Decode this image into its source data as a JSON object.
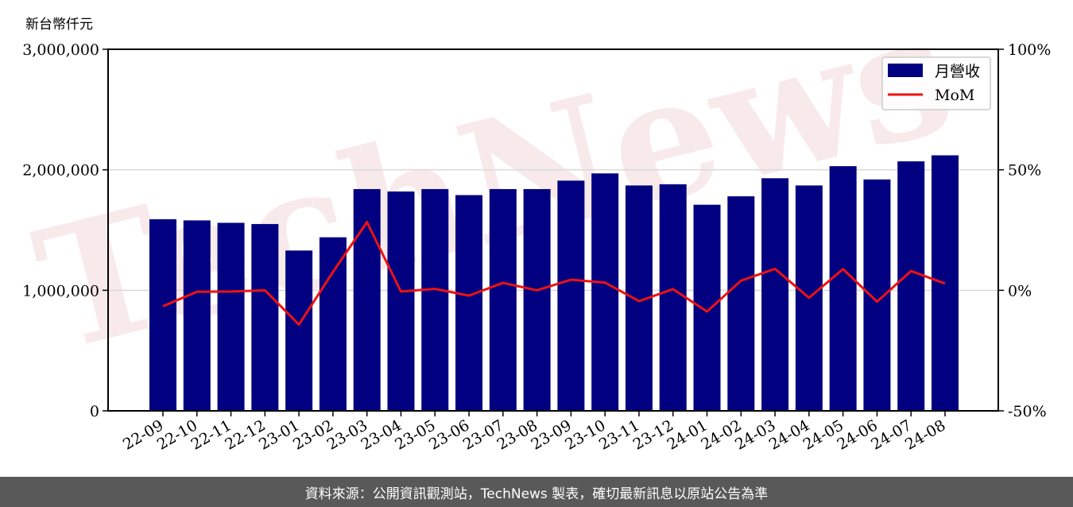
{
  "unit_label": "新台幣仟元",
  "footer_text": "資料來源：公開資訊觀測站，TechNews 製表，確切最新訊息以原站公告為準",
  "watermark_text": "TechNews",
  "colors": {
    "bar": "#000080",
    "line": "#ee1111",
    "grid": "#d9d9d9",
    "footer_bg": "#595959"
  },
  "chart_data": {
    "type": "bar",
    "categories": [
      "22-09",
      "22-10",
      "22-11",
      "22-12",
      "23-01",
      "23-02",
      "23-03",
      "23-04",
      "23-05",
      "23-06",
      "23-07",
      "23-08",
      "23-09",
      "23-10",
      "23-11",
      "23-12",
      "24-01",
      "24-02",
      "24-03",
      "24-04",
      "24-05",
      "24-06",
      "24-07",
      "24-08"
    ],
    "series": [
      {
        "name": "月營收",
        "type": "bar",
        "axis": "left",
        "values": [
          1590000,
          1580000,
          1560000,
          1550000,
          1330000,
          1440000,
          1840000,
          1820000,
          1840000,
          1790000,
          1840000,
          1840000,
          1910000,
          1970000,
          1870000,
          1880000,
          1710000,
          1780000,
          1930000,
          1870000,
          2030000,
          1920000,
          2070000,
          2120000
        ]
      },
      {
        "name": "MoM",
        "type": "line",
        "axis": "right",
        "values": [
          -6.6,
          -0.6,
          -0.5,
          0,
          -14.2,
          7.6,
          28.3,
          -0.5,
          0.6,
          -2.2,
          3.1,
          0,
          4.4,
          3.2,
          -4.5,
          0.5,
          -8.8,
          4.0,
          8.9,
          -3.1,
          8.8,
          -4.7,
          8.0,
          2.8
        ]
      }
    ],
    "y_left": {
      "min": 0,
      "max": 3000000,
      "ticks": [
        "0",
        "1,000,000",
        "2,000,000",
        "3,000,000"
      ]
    },
    "y_right": {
      "min": -50,
      "max": 100,
      "ticks": [
        "-50%",
        "0%",
        "50%",
        "100%"
      ]
    },
    "legend": {
      "position": "top-right",
      "entries": [
        "月營收",
        "MoM"
      ]
    },
    "grid": "horizontal"
  }
}
